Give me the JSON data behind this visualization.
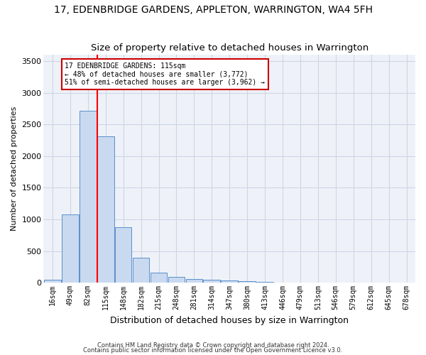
{
  "title": "17, EDENBRIDGE GARDENS, APPLETON, WARRINGTON, WA4 5FH",
  "subtitle": "Size of property relative to detached houses in Warrington",
  "xlabel": "Distribution of detached houses by size in Warrington",
  "ylabel": "Number of detached properties",
  "categories": [
    "16sqm",
    "49sqm",
    "82sqm",
    "115sqm",
    "148sqm",
    "182sqm",
    "215sqm",
    "248sqm",
    "281sqm",
    "314sqm",
    "347sqm",
    "380sqm",
    "413sqm",
    "446sqm",
    "479sqm",
    "513sqm",
    "546sqm",
    "579sqm",
    "612sqm",
    "645sqm",
    "678sqm"
  ],
  "values": [
    50,
    1080,
    2720,
    2310,
    880,
    390,
    155,
    90,
    55,
    50,
    30,
    20,
    10,
    5,
    3,
    2,
    1,
    1,
    0,
    0,
    0
  ],
  "bar_color": "#c9d9f0",
  "bar_edge_color": "#5b8fc9",
  "red_line_x": 3,
  "annotation_text": "17 EDENBRIDGE GARDENS: 115sqm\n← 48% of detached houses are smaller (3,772)\n51% of semi-detached houses are larger (3,962) →",
  "annotation_box_color": "#ffffff",
  "annotation_box_edge": "#cc0000",
  "ylim": [
    0,
    3600
  ],
  "yticks": [
    0,
    500,
    1000,
    1500,
    2000,
    2500,
    3000,
    3500
  ],
  "grid_color": "#cdd5e5",
  "bg_color": "#eef2f8",
  "footer1": "Contains HM Land Registry data © Crown copyright and database right 2024.",
  "footer2": "Contains public sector information licensed under the Open Government Licence v3.0."
}
